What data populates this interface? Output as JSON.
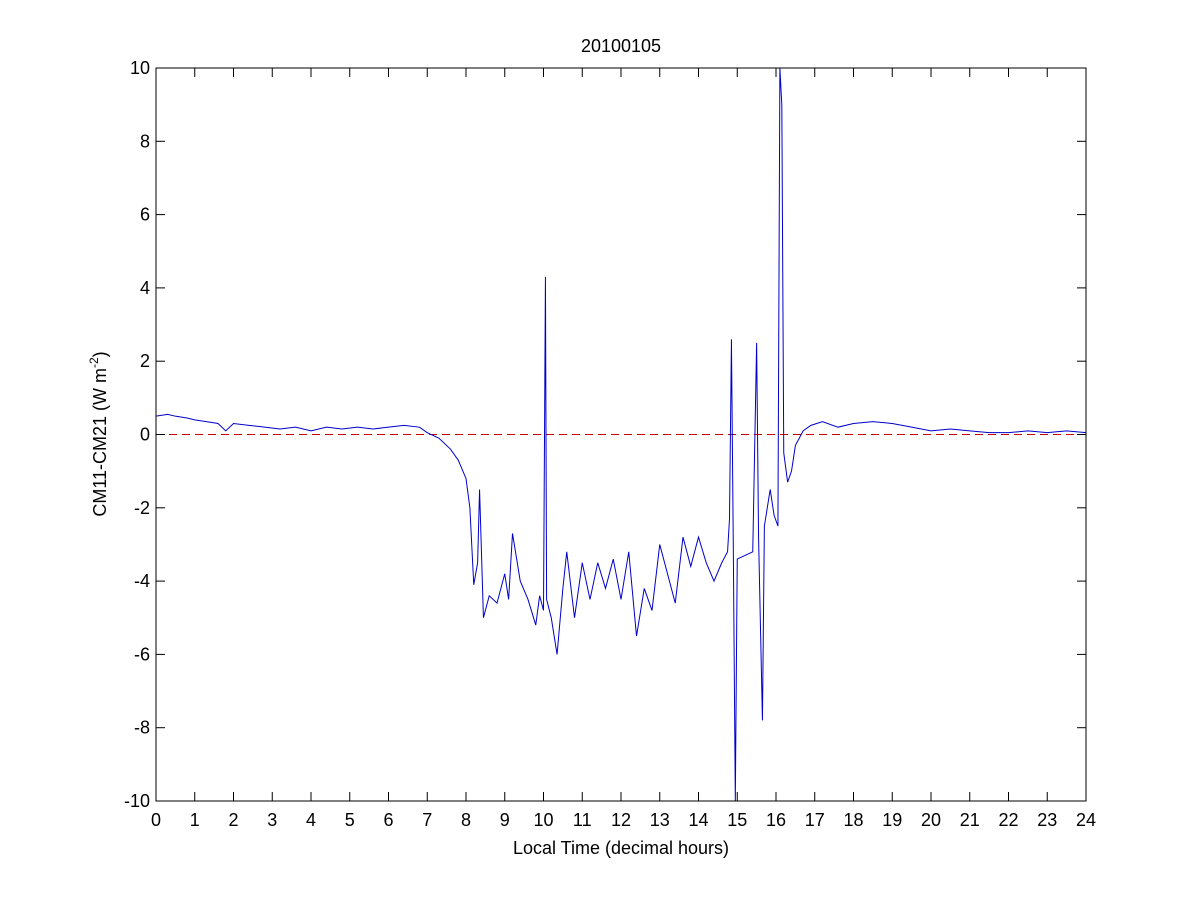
{
  "chart_data": {
    "type": "line",
    "title": "20100105",
    "xlabel": "Local Time (decimal hours)",
    "ylabel": "CM11-CM21 (W m",
    "ylabel_sup": "-2",
    "ylabel_end": ")",
    "x": [
      0,
      0.3,
      0.5,
      0.8,
      1.0,
      1.3,
      1.6,
      1.8,
      2.0,
      2.4,
      2.8,
      3.2,
      3.6,
      4.0,
      4.4,
      4.8,
      5.2,
      5.6,
      6.0,
      6.4,
      6.8,
      7.0,
      7.3,
      7.6,
      7.8,
      8.0,
      8.1,
      8.2,
      8.3,
      8.35,
      8.45,
      8.6,
      8.8,
      9.0,
      9.1,
      9.2,
      9.4,
      9.6,
      9.8,
      9.9,
      10.0,
      10.05,
      10.08,
      10.2,
      10.35,
      10.5,
      10.6,
      10.8,
      11.0,
      11.2,
      11.4,
      11.6,
      11.8,
      12.0,
      12.2,
      12.4,
      12.6,
      12.8,
      13.0,
      13.2,
      13.4,
      13.6,
      13.8,
      14.0,
      14.2,
      14.4,
      14.6,
      14.75,
      14.8,
      14.85,
      14.9,
      14.95,
      15.0,
      15.2,
      15.4,
      15.5,
      15.55,
      15.65,
      15.7,
      15.85,
      15.95,
      16.05,
      16.1,
      16.15,
      16.2,
      16.3,
      16.4,
      16.5,
      16.7,
      16.9,
      17.2,
      17.6,
      18.0,
      18.5,
      19.0,
      19.5,
      20.0,
      20.5,
      21.0,
      21.5,
      22.0,
      22.5,
      23.0,
      23.5,
      24.0
    ],
    "series": [
      {
        "color": "#0000cc",
        "values": [
          0.5,
          0.55,
          0.5,
          0.45,
          0.4,
          0.35,
          0.3,
          0.1,
          0.3,
          0.25,
          0.2,
          0.15,
          0.2,
          0.1,
          0.2,
          0.15,
          0.2,
          0.15,
          0.2,
          0.25,
          0.2,
          0.05,
          -0.1,
          -0.4,
          -0.7,
          -1.2,
          -2,
          -4.1,
          -3.5,
          -1.5,
          -5,
          -4.4,
          -4.6,
          -3.8,
          -4.5,
          -2.7,
          -4.0,
          -4.5,
          -5.2,
          -4.4,
          -4.8,
          4.3,
          -4.5,
          -5,
          -6,
          -4.2,
          -3.2,
          -5,
          -3.5,
          -4.5,
          -3.5,
          -4.2,
          -3.4,
          -4.5,
          -3.2,
          -5.5,
          -4.2,
          -4.8,
          -3.0,
          -3.8,
          -4.6,
          -2.8,
          -3.6,
          -2.8,
          -3.5,
          -4.0,
          -3.5,
          -3.2,
          -2.3,
          2.6,
          -3.3,
          -10,
          -3.4,
          -3.3,
          -3.2,
          2.5,
          -2.8,
          -7.8,
          -2.5,
          -1.5,
          -2.2,
          -2.5,
          10,
          9,
          -0.5,
          -1.3,
          -1.0,
          -0.3,
          0.1,
          0.25,
          0.35,
          0.2,
          0.3,
          0.35,
          0.3,
          0.2,
          0.1,
          0.15,
          0.1,
          0.05,
          0.05,
          0.1,
          0.05,
          0.1,
          0.05
        ]
      }
    ],
    "reference_line": {
      "value": 0,
      "color": "#cc0000",
      "dashed": true
    },
    "xlim": [
      0,
      24
    ],
    "xticks": [
      0,
      1,
      2,
      3,
      4,
      5,
      6,
      7,
      8,
      9,
      10,
      11,
      12,
      13,
      14,
      15,
      16,
      17,
      18,
      19,
      20,
      21,
      22,
      23,
      24
    ],
    "ylim": [
      -10,
      10
    ],
    "yticks": [
      -10,
      -8,
      -6,
      -4,
      -2,
      0,
      2,
      4,
      6,
      8,
      10
    ]
  }
}
